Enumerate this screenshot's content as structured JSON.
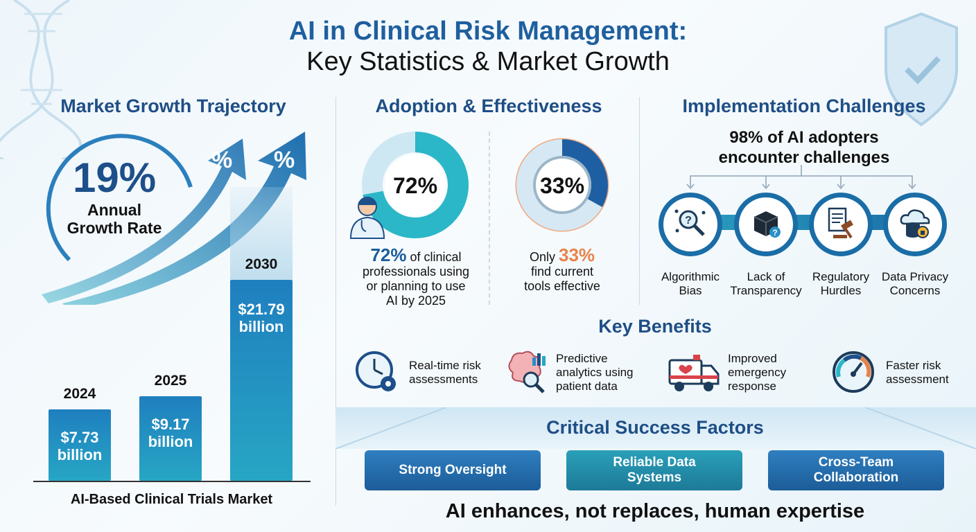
{
  "header": {
    "title_line1": "AI in Clinical Risk Management:",
    "title_line2": "Key Statistics & Market Growth"
  },
  "market": {
    "heading": "Market Growth Trajectory",
    "growth_rate": "19%",
    "growth_label_line1": "Annual",
    "growth_label_line2": "Growth Rate",
    "arrow_symbol": "%",
    "footer": "AI-Based Clinical Trials Market",
    "bars": [
      {
        "year": "2024",
        "line1": "$7.73",
        "line2": "billion",
        "value": 7.73
      },
      {
        "year": "2025",
        "line1": "$9.17",
        "line2": "billion",
        "value": 9.17
      },
      {
        "year": "2030",
        "line1": "$21.79",
        "line2": "billion",
        "value": 21.79
      }
    ]
  },
  "adoption": {
    "heading": "Adoption & Effectiveness",
    "donut1": {
      "value": 72,
      "label": "72%",
      "cap_hl": "72%",
      "cap_rest1": " of clinical",
      "cap_line2": "professionals using",
      "cap_line3": "or planning to use",
      "cap_line4": "AI by 2025"
    },
    "donut2": {
      "value": 33,
      "label": "33%",
      "cap_pre": "Only ",
      "cap_hl": "33%",
      "cap_line2": "find current",
      "cap_line3": "tools effective"
    }
  },
  "challenges": {
    "heading": "Implementation Challenges",
    "stat_line1": "98% of AI adopters",
    "stat_line2": "encounter challenges",
    "items": [
      {
        "line1": "Algorithmic",
        "line2": "Bias",
        "icon": "magnifier-network-icon"
      },
      {
        "line1": "Lack of",
        "line2": "Transparency",
        "icon": "black-box-icon"
      },
      {
        "line1": "Regulatory",
        "line2": "Hurdles",
        "icon": "gavel-document-icon"
      },
      {
        "line1": "Data Privacy",
        "line2": "Concerns",
        "icon": "cloud-database-lock-icon"
      }
    ]
  },
  "benefits": {
    "heading": "Key Benefits",
    "items": [
      {
        "line1": "Real-time risk",
        "line2": "assessments",
        "line3": "",
        "icon": "clock-gear-icon"
      },
      {
        "line1": "Predictive",
        "line2": "analytics using",
        "line3": "patient data",
        "icon": "brain-chart-icon"
      },
      {
        "line1": "Improved",
        "line2": "emergency",
        "line3": "response",
        "icon": "ambulance-icon"
      },
      {
        "line1": "Faster risk",
        "line2": "assessment",
        "line3": "",
        "icon": "speedometer-icon"
      }
    ]
  },
  "csf": {
    "heading": "Critical Success Factors",
    "items": [
      {
        "line1": "Strong Oversight",
        "line2": ""
      },
      {
        "line1": "Reliable Data",
        "line2": "Systems"
      },
      {
        "line1": "Cross-Team",
        "line2": "Collaboration"
      }
    ],
    "tagline": "AI enhances, not replaces, human expertise"
  },
  "colors": {
    "primary_blue": "#1f5f9e",
    "teal": "#27a6c4",
    "orange": "#e8824a",
    "navy": "#1f4e86"
  }
}
